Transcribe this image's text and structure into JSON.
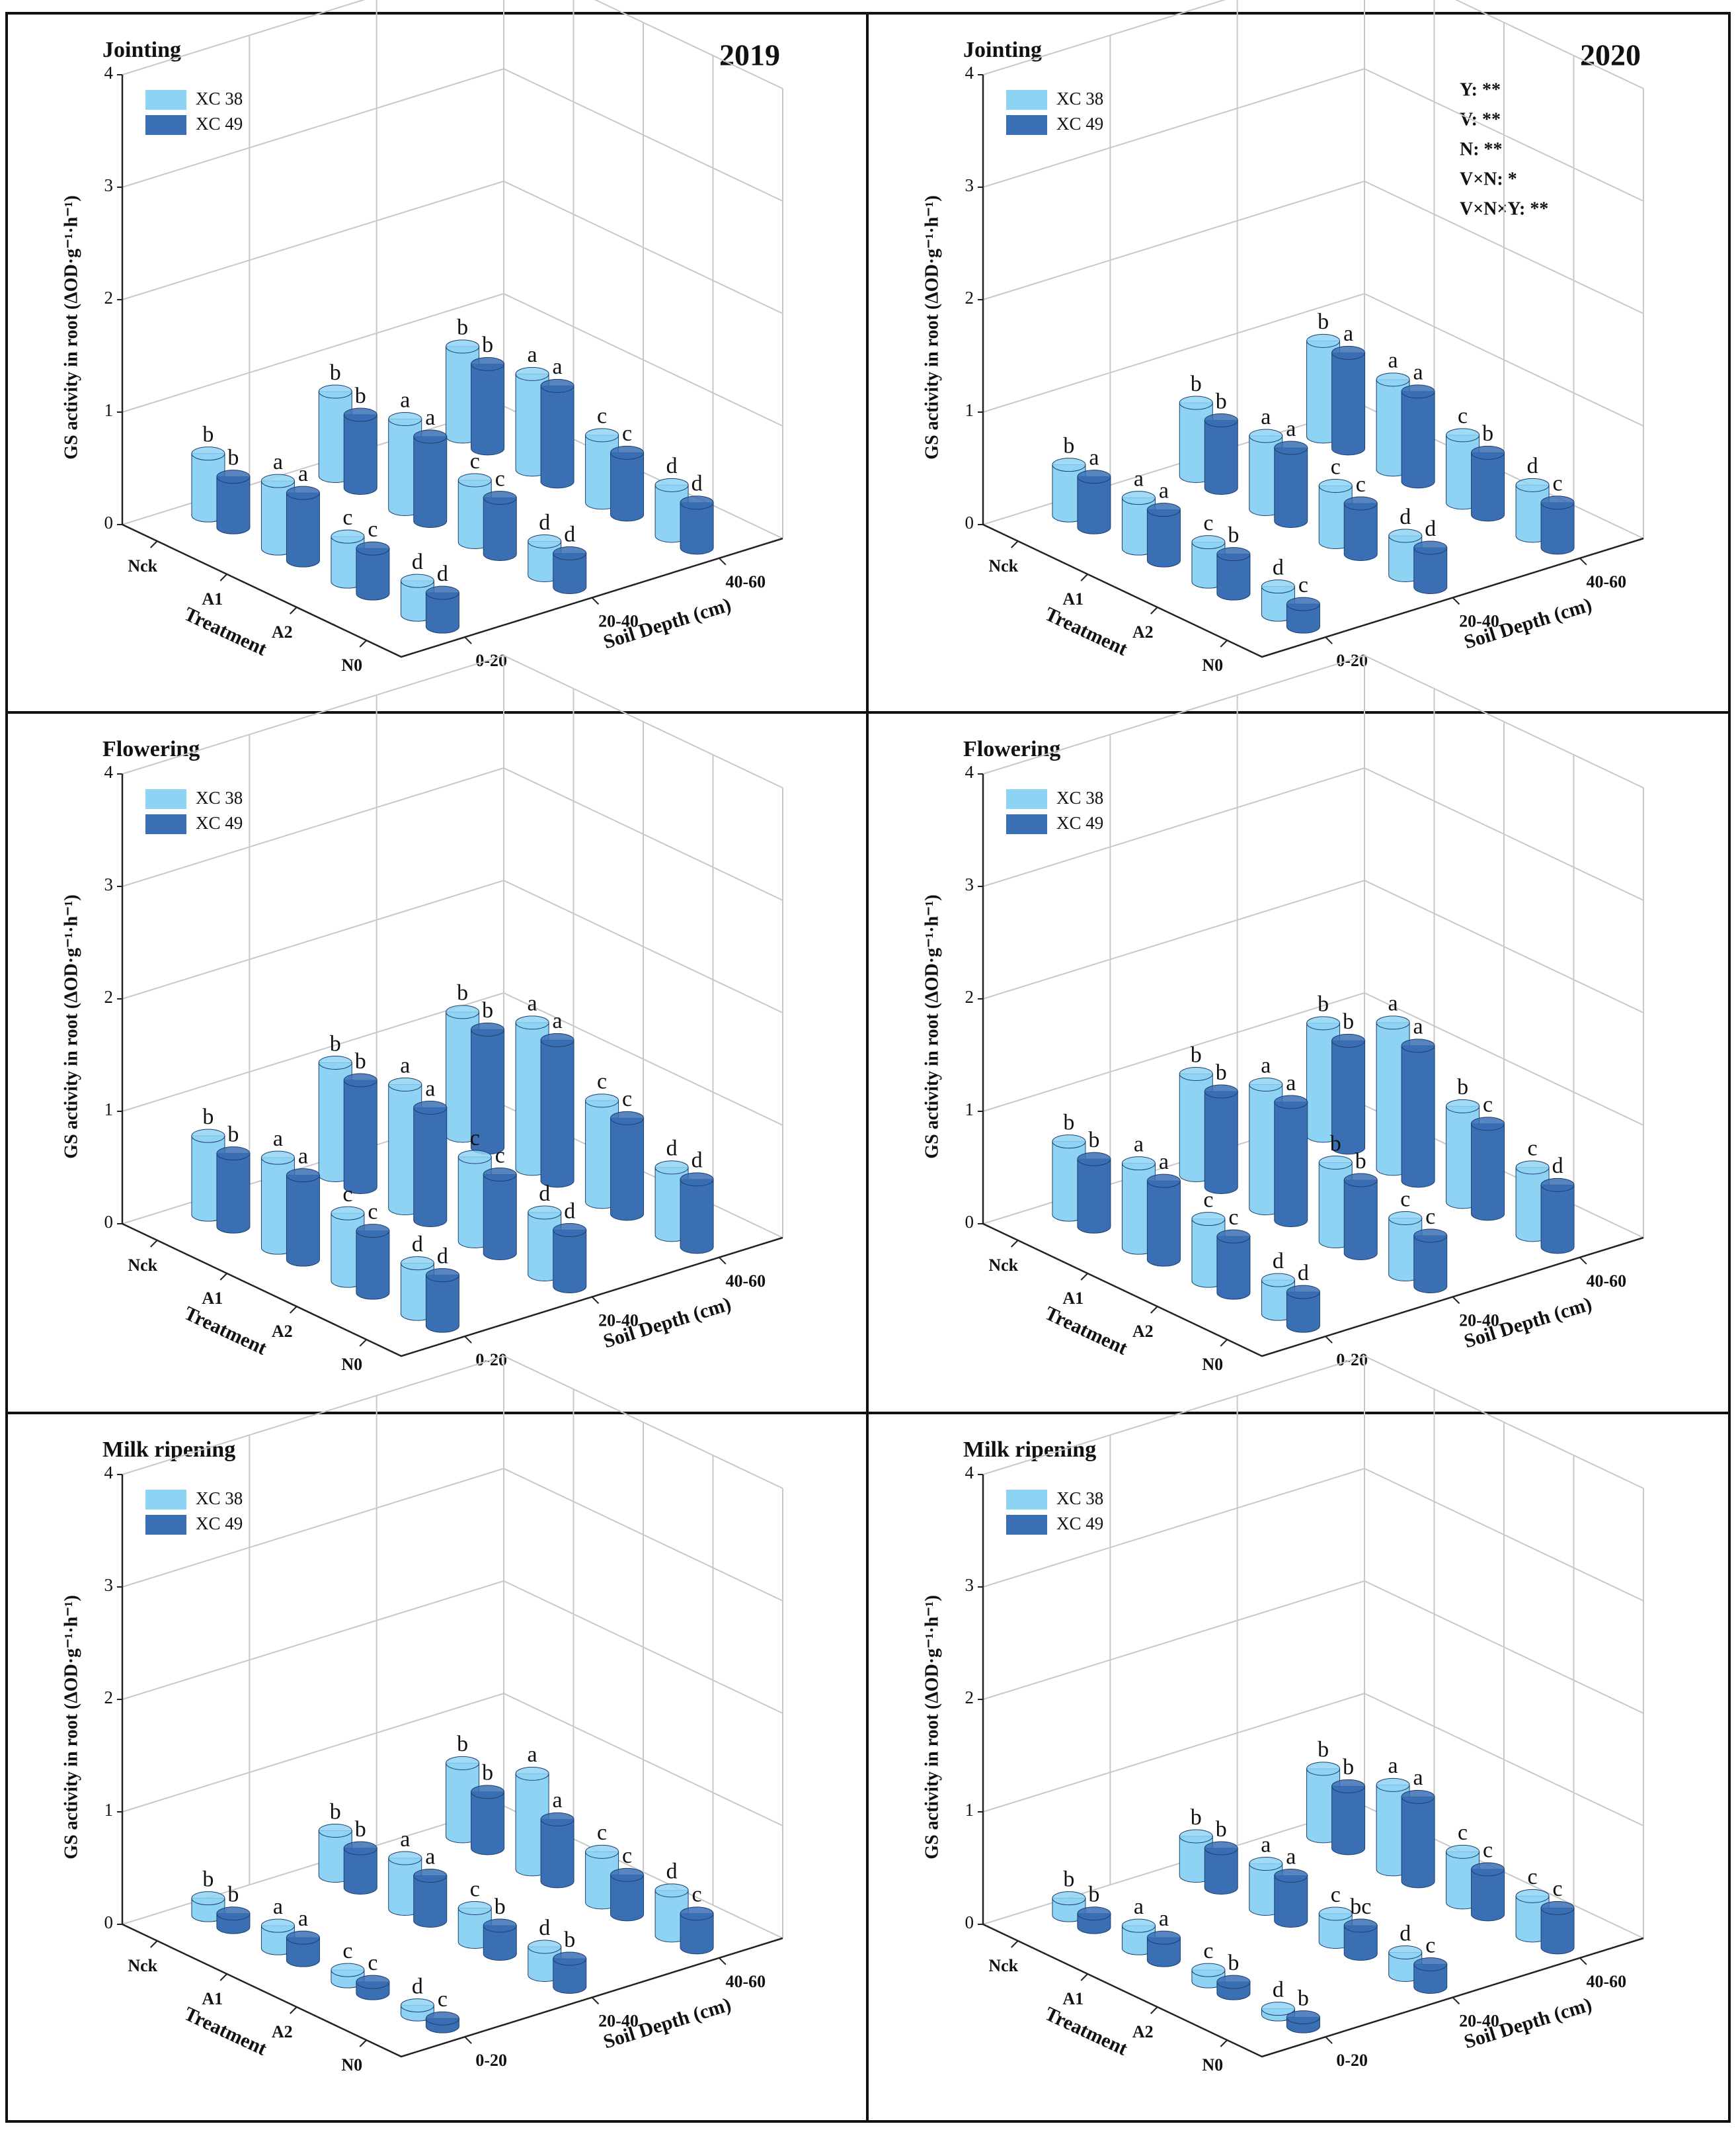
{
  "chart_data": [
    {
      "type": "bar3d",
      "title": "Jointing",
      "year": "2019",
      "ylabel": "GS activity in root (ΔOD·g⁻¹·h⁻¹)",
      "xlabel": "Treatment",
      "zlabel": "Soil Depth (cm)",
      "categories": [
        "Nck",
        "A1",
        "A2",
        "N0"
      ],
      "depths": [
        "0-20",
        "20-40",
        "40-60"
      ],
      "ylim": [
        0,
        4
      ],
      "yticks": [
        0,
        1,
        2,
        3,
        4
      ],
      "grid": true,
      "series": [
        {
          "name": "XC 38",
          "color": "#8fd3f4",
          "values": [
            [
              0.55,
              0.75,
              0.8
            ],
            [
              0.6,
              0.8,
              0.85
            ],
            [
              0.4,
              0.55,
              0.6
            ],
            [
              0.3,
              0.3,
              0.45
            ]
          ],
          "labels": [
            [
              "b",
              "b",
              "b"
            ],
            [
              "a",
              "a",
              "a"
            ],
            [
              "c",
              "c",
              "c"
            ],
            [
              "d",
              "d",
              "d"
            ]
          ]
        },
        {
          "name": "XC 49",
          "color": "#3b6fb4",
          "values": [
            [
              0.45,
              0.65,
              0.75
            ],
            [
              0.6,
              0.75,
              0.85
            ],
            [
              0.4,
              0.5,
              0.55
            ],
            [
              0.3,
              0.3,
              0.4
            ]
          ],
          "labels": [
            [
              "b",
              "b",
              "b"
            ],
            [
              "a",
              "a",
              "a"
            ],
            [
              "c",
              "c",
              "c"
            ],
            [
              "d",
              "d",
              "d"
            ]
          ]
        }
      ]
    },
    {
      "type": "bar3d",
      "title": "Jointing",
      "year": "2020",
      "ylabel": "GS activity in root (ΔOD·g⁻¹·h⁻¹)",
      "xlabel": "Treatment",
      "zlabel": "Soil Depth (cm)",
      "categories": [
        "Nck",
        "A1",
        "A2",
        "N0"
      ],
      "depths": [
        "0-20",
        "20-40",
        "40-60"
      ],
      "ylim": [
        0,
        4
      ],
      "yticks": [
        0,
        1,
        2,
        3,
        4
      ],
      "grid": true,
      "annotations": [
        "Y: **",
        "V: **",
        "N: **",
        "V×N: *",
        "V×N×Y: **"
      ],
      "series": [
        {
          "name": "XC 38",
          "color": "#8fd3f4",
          "values": [
            [
              0.45,
              0.65,
              0.85
            ],
            [
              0.45,
              0.65,
              0.8
            ],
            [
              0.35,
              0.5,
              0.6
            ],
            [
              0.25,
              0.35,
              0.45
            ]
          ],
          "labels": [
            [
              "b",
              "b",
              "b"
            ],
            [
              "a",
              "a",
              "a"
            ],
            [
              "c",
              "c",
              "c"
            ],
            [
              "d",
              "d",
              "d"
            ]
          ]
        },
        {
          "name": "XC 49",
          "color": "#3b6fb4",
          "values": [
            [
              0.45,
              0.6,
              0.85
            ],
            [
              0.45,
              0.65,
              0.8
            ],
            [
              0.35,
              0.45,
              0.55
            ],
            [
              0.2,
              0.35,
              0.4
            ]
          ],
          "labels": [
            [
              "a",
              "b",
              "a"
            ],
            [
              "a",
              "a",
              "a"
            ],
            [
              "b",
              "c",
              "b"
            ],
            [
              "c",
              "d",
              "c"
            ]
          ]
        }
      ]
    },
    {
      "type": "bar3d",
      "title": "Flowering",
      "ylabel": "GS activity in root (ΔOD·g⁻¹·h⁻¹)",
      "xlabel": "Treatment",
      "zlabel": "Soil Depth (cm)",
      "categories": [
        "Nck",
        "A1",
        "A2",
        "N0"
      ],
      "depths": [
        "0-20",
        "20-40",
        "40-60"
      ],
      "ylim": [
        0,
        4
      ],
      "yticks": [
        0,
        1,
        2,
        3,
        4
      ],
      "grid": true,
      "series": [
        {
          "name": "XC 38",
          "color": "#8fd3f4",
          "values": [
            [
              0.7,
              1.0,
              1.1
            ],
            [
              0.8,
              1.1,
              1.3
            ],
            [
              0.6,
              0.75,
              0.9
            ],
            [
              0.45,
              0.55,
              0.6
            ]
          ],
          "labels": [
            [
              "b",
              "b",
              "b"
            ],
            [
              "a",
              "a",
              "a"
            ],
            [
              "c",
              "c",
              "c"
            ],
            [
              "d",
              "d",
              "d"
            ]
          ]
        },
        {
          "name": "XC 49",
          "color": "#3b6fb4",
          "values": [
            [
              0.65,
              0.95,
              1.05
            ],
            [
              0.75,
              1.0,
              1.25
            ],
            [
              0.55,
              0.7,
              0.85
            ],
            [
              0.45,
              0.5,
              0.6
            ]
          ],
          "labels": [
            [
              "b",
              "b",
              "b"
            ],
            [
              "a",
              "a",
              "a"
            ],
            [
              "c",
              "c",
              "c"
            ],
            [
              "d",
              "d",
              "d"
            ]
          ]
        }
      ]
    },
    {
      "type": "bar3d",
      "title": "Flowering",
      "ylabel": "GS activity in root (ΔOD·g⁻¹·h⁻¹)",
      "xlabel": "Treatment",
      "zlabel": "Soil Depth (cm)",
      "categories": [
        "Nck",
        "A1",
        "A2",
        "N0"
      ],
      "depths": [
        "0-20",
        "20-40",
        "40-60"
      ],
      "ylim": [
        0,
        4
      ],
      "yticks": [
        0,
        1,
        2,
        3,
        4
      ],
      "grid": true,
      "series": [
        {
          "name": "XC 38",
          "color": "#8fd3f4",
          "values": [
            [
              0.65,
              0.9,
              1.0
            ],
            [
              0.75,
              1.1,
              1.3
            ],
            [
              0.55,
              0.7,
              0.85
            ],
            [
              0.3,
              0.5,
              0.6
            ]
          ],
          "labels": [
            [
              "b",
              "b",
              "b"
            ],
            [
              "a",
              "a",
              "a"
            ],
            [
              "c",
              "b",
              "b"
            ],
            [
              "d",
              "c",
              "c"
            ]
          ]
        },
        {
          "name": "XC 49",
          "color": "#3b6fb4",
          "values": [
            [
              0.6,
              0.85,
              0.95
            ],
            [
              0.7,
              1.05,
              1.2
            ],
            [
              0.5,
              0.65,
              0.8
            ],
            [
              0.3,
              0.45,
              0.55
            ]
          ],
          "labels": [
            [
              "b",
              "b",
              "b"
            ],
            [
              "a",
              "a",
              "a"
            ],
            [
              "c",
              "b",
              "c"
            ],
            [
              "d",
              "c",
              "d"
            ]
          ]
        }
      ]
    },
    {
      "type": "bar3d",
      "title": "Milk ripening",
      "ylabel": "GS activity in root (ΔOD·g⁻¹·h⁻¹)",
      "xlabel": "Treatment",
      "zlabel": "Soil Depth (cm)",
      "categories": [
        "Nck",
        "A1",
        "A2",
        "N0"
      ],
      "depths": [
        "0-20",
        "20-40",
        "40-60"
      ],
      "ylim": [
        0,
        4
      ],
      "yticks": [
        0,
        1,
        2,
        3,
        4
      ],
      "grid": true,
      "series": [
        {
          "name": "XC 38",
          "color": "#8fd3f4",
          "values": [
            [
              0.15,
              0.4,
              0.65
            ],
            [
              0.2,
              0.45,
              0.85
            ],
            [
              0.1,
              0.3,
              0.45
            ],
            [
              0.08,
              0.25,
              0.4
            ]
          ],
          "labels": [
            [
              "b",
              "b",
              "b"
            ],
            [
              "a",
              "a",
              "a"
            ],
            [
              "c",
              "c",
              "c"
            ],
            [
              "d",
              "d",
              "d"
            ]
          ]
        },
        {
          "name": "XC 49",
          "color": "#3b6fb4",
          "values": [
            [
              0.12,
              0.35,
              0.5
            ],
            [
              0.2,
              0.4,
              0.55
            ],
            [
              0.1,
              0.25,
              0.35
            ],
            [
              0.07,
              0.25,
              0.3
            ]
          ],
          "labels": [
            [
              "b",
              "b",
              "b"
            ],
            [
              "a",
              "a",
              "a"
            ],
            [
              "c",
              "b",
              "c"
            ],
            [
              "c",
              "b",
              "c"
            ]
          ]
        }
      ]
    },
    {
      "type": "bar3d",
      "title": "Milk ripening",
      "ylabel": "GS activity in root (ΔOD·g⁻¹·h⁻¹)",
      "xlabel": "Treatment",
      "zlabel": "Soil Depth (cm)",
      "categories": [
        "Nck",
        "A1",
        "A2",
        "N0"
      ],
      "depths": [
        "0-20",
        "20-40",
        "40-60"
      ],
      "ylim": [
        0,
        4
      ],
      "yticks": [
        0,
        1,
        2,
        3,
        4
      ],
      "grid": true,
      "series": [
        {
          "name": "XC 38",
          "color": "#8fd3f4",
          "values": [
            [
              0.15,
              0.35,
              0.6
            ],
            [
              0.2,
              0.4,
              0.75
            ],
            [
              0.1,
              0.25,
              0.45
            ],
            [
              0.05,
              0.2,
              0.35
            ]
          ],
          "labels": [
            [
              "b",
              "b",
              "b"
            ],
            [
              "a",
              "a",
              "a"
            ],
            [
              "c",
              "c",
              "c"
            ],
            [
              "d",
              "d",
              "c"
            ]
          ]
        },
        {
          "name": "XC 49",
          "color": "#3b6fb4",
          "values": [
            [
              0.12,
              0.35,
              0.55
            ],
            [
              0.2,
              0.4,
              0.75
            ],
            [
              0.1,
              0.25,
              0.4
            ],
            [
              0.08,
              0.2,
              0.35
            ]
          ],
          "labels": [
            [
              "b",
              "b",
              "b"
            ],
            [
              "a",
              "a",
              "a"
            ],
            [
              "b",
              "bc",
              "c"
            ],
            [
              "b",
              "c",
              "c"
            ]
          ]
        }
      ]
    }
  ]
}
